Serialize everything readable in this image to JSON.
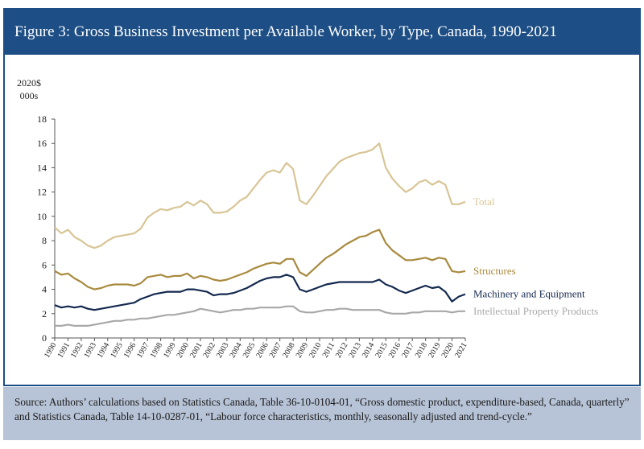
{
  "title": "Figure 3: Gross Business Investment per Available Worker, by Type, Canada, 1990-2021",
  "source": "Source: Authors’ calculations based on Statistics Canada, Table 36-10-0104-01, “Gross domestic product, expenditure-based, Canada, quarterly” and Statistics Canada, Table 14-10-0287-01, “Labour force characteristics, monthly, seasonally adjusted and trend-cycle.”",
  "chart_data": {
    "type": "line",
    "ylabel": [
      "2020$",
      "000s"
    ],
    "ylim": [
      0,
      18
    ],
    "yticks": [
      0,
      2,
      4,
      6,
      8,
      10,
      12,
      14,
      16,
      18
    ],
    "xlim": [
      1990,
      2021
    ],
    "xticks": [
      "1990",
      "1991",
      "1992",
      "1993",
      "1994",
      "1995",
      "1996",
      "1997",
      "1998",
      "1999",
      "2000",
      "2001",
      "2002",
      "2003",
      "2004",
      "2005",
      "2006",
      "2007",
      "2008",
      "2009",
      "2010",
      "2011",
      "2012",
      "2013",
      "2014",
      "2015",
      "2016",
      "2017",
      "2018",
      "2019",
      "2020",
      "2021"
    ],
    "grid": false,
    "legend": "inline-right",
    "series": [
      {
        "name": "Total",
        "color": "#d8c596",
        "points": [
          [
            1990.0,
            9.1
          ],
          [
            1990.5,
            8.6
          ],
          [
            1991.0,
            8.9
          ],
          [
            1991.5,
            8.3
          ],
          [
            1992.0,
            8.0
          ],
          [
            1992.5,
            7.6
          ],
          [
            1993.0,
            7.4
          ],
          [
            1993.5,
            7.6
          ],
          [
            1994.0,
            8.0
          ],
          [
            1994.5,
            8.3
          ],
          [
            1995.0,
            8.4
          ],
          [
            1995.5,
            8.5
          ],
          [
            1996.0,
            8.6
          ],
          [
            1996.5,
            9.0
          ],
          [
            1997.0,
            9.9
          ],
          [
            1997.5,
            10.3
          ],
          [
            1998.0,
            10.6
          ],
          [
            1998.5,
            10.5
          ],
          [
            1999.0,
            10.7
          ],
          [
            1999.5,
            10.8
          ],
          [
            2000.0,
            11.2
          ],
          [
            2000.5,
            10.9
          ],
          [
            2001.0,
            11.3
          ],
          [
            2001.5,
            11.0
          ],
          [
            2002.0,
            10.3
          ],
          [
            2002.5,
            10.3
          ],
          [
            2003.0,
            10.4
          ],
          [
            2003.5,
            10.8
          ],
          [
            2004.0,
            11.3
          ],
          [
            2004.5,
            11.6
          ],
          [
            2005.0,
            12.3
          ],
          [
            2005.5,
            13.0
          ],
          [
            2006.0,
            13.6
          ],
          [
            2006.5,
            13.8
          ],
          [
            2007.0,
            13.6
          ],
          [
            2007.5,
            14.4
          ],
          [
            2008.0,
            13.9
          ],
          [
            2008.5,
            11.3
          ],
          [
            2009.0,
            11.0
          ],
          [
            2009.5,
            11.7
          ],
          [
            2010.0,
            12.5
          ],
          [
            2010.5,
            13.3
          ],
          [
            2011.0,
            13.9
          ],
          [
            2011.5,
            14.5
          ],
          [
            2012.0,
            14.8
          ],
          [
            2012.5,
            15.0
          ],
          [
            2013.0,
            15.2
          ],
          [
            2013.5,
            15.3
          ],
          [
            2014.0,
            15.5
          ],
          [
            2014.5,
            16.0
          ],
          [
            2015.0,
            14.0
          ],
          [
            2015.5,
            13.1
          ],
          [
            2016.0,
            12.5
          ],
          [
            2016.5,
            12.0
          ],
          [
            2017.0,
            12.3
          ],
          [
            2017.5,
            12.8
          ],
          [
            2018.0,
            13.0
          ],
          [
            2018.5,
            12.6
          ],
          [
            2019.0,
            12.9
          ],
          [
            2019.5,
            12.6
          ],
          [
            2020.0,
            11.0
          ],
          [
            2020.5,
            11.0
          ],
          [
            2021.0,
            11.2
          ]
        ]
      },
      {
        "name": "Structures",
        "color": "#a88a3e",
        "points": [
          [
            1990.0,
            5.5
          ],
          [
            1990.5,
            5.2
          ],
          [
            1991.0,
            5.3
          ],
          [
            1991.5,
            4.9
          ],
          [
            1992.0,
            4.6
          ],
          [
            1992.5,
            4.2
          ],
          [
            1993.0,
            4.0
          ],
          [
            1993.5,
            4.1
          ],
          [
            1994.0,
            4.3
          ],
          [
            1994.5,
            4.4
          ],
          [
            1995.0,
            4.4
          ],
          [
            1995.5,
            4.4
          ],
          [
            1996.0,
            4.3
          ],
          [
            1996.5,
            4.5
          ],
          [
            1997.0,
            5.0
          ],
          [
            1997.5,
            5.1
          ],
          [
            1998.0,
            5.2
          ],
          [
            1998.5,
            5.0
          ],
          [
            1999.0,
            5.1
          ],
          [
            1999.5,
            5.1
          ],
          [
            2000.0,
            5.3
          ],
          [
            2000.5,
            4.9
          ],
          [
            2001.0,
            5.1
          ],
          [
            2001.5,
            5.0
          ],
          [
            2002.0,
            4.8
          ],
          [
            2002.5,
            4.7
          ],
          [
            2003.0,
            4.8
          ],
          [
            2003.5,
            5.0
          ],
          [
            2004.0,
            5.2
          ],
          [
            2004.5,
            5.4
          ],
          [
            2005.0,
            5.7
          ],
          [
            2005.5,
            5.9
          ],
          [
            2006.0,
            6.1
          ],
          [
            2006.5,
            6.2
          ],
          [
            2007.0,
            6.1
          ],
          [
            2007.5,
            6.5
          ],
          [
            2008.0,
            6.5
          ],
          [
            2008.5,
            5.4
          ],
          [
            2009.0,
            5.1
          ],
          [
            2009.5,
            5.6
          ],
          [
            2010.0,
            6.1
          ],
          [
            2010.5,
            6.6
          ],
          [
            2011.0,
            6.9
          ],
          [
            2011.5,
            7.3
          ],
          [
            2012.0,
            7.7
          ],
          [
            2012.5,
            8.0
          ],
          [
            2013.0,
            8.3
          ],
          [
            2013.5,
            8.4
          ],
          [
            2014.0,
            8.7
          ],
          [
            2014.5,
            8.9
          ],
          [
            2015.0,
            7.8
          ],
          [
            2015.5,
            7.2
          ],
          [
            2016.0,
            6.8
          ],
          [
            2016.5,
            6.4
          ],
          [
            2017.0,
            6.4
          ],
          [
            2017.5,
            6.5
          ],
          [
            2018.0,
            6.6
          ],
          [
            2018.5,
            6.4
          ],
          [
            2019.0,
            6.6
          ],
          [
            2019.5,
            6.5
          ],
          [
            2020.0,
            5.5
          ],
          [
            2020.5,
            5.4
          ],
          [
            2021.0,
            5.5
          ]
        ]
      },
      {
        "name": "Machinery and Equipment",
        "color": "#14294f",
        "points": [
          [
            1990.0,
            2.7
          ],
          [
            1990.5,
            2.5
          ],
          [
            1991.0,
            2.6
          ],
          [
            1991.5,
            2.5
          ],
          [
            1992.0,
            2.6
          ],
          [
            1992.5,
            2.4
          ],
          [
            1993.0,
            2.3
          ],
          [
            1993.5,
            2.4
          ],
          [
            1994.0,
            2.5
          ],
          [
            1994.5,
            2.6
          ],
          [
            1995.0,
            2.7
          ],
          [
            1995.5,
            2.8
          ],
          [
            1996.0,
            2.9
          ],
          [
            1996.5,
            3.2
          ],
          [
            1997.0,
            3.4
          ],
          [
            1997.5,
            3.6
          ],
          [
            1998.0,
            3.7
          ],
          [
            1998.5,
            3.8
          ],
          [
            1999.0,
            3.8
          ],
          [
            1999.5,
            3.8
          ],
          [
            2000.0,
            4.0
          ],
          [
            2000.5,
            4.0
          ],
          [
            2001.0,
            3.9
          ],
          [
            2001.5,
            3.8
          ],
          [
            2002.0,
            3.5
          ],
          [
            2002.5,
            3.6
          ],
          [
            2003.0,
            3.6
          ],
          [
            2003.5,
            3.7
          ],
          [
            2004.0,
            3.9
          ],
          [
            2004.5,
            4.1
          ],
          [
            2005.0,
            4.4
          ],
          [
            2005.5,
            4.7
          ],
          [
            2006.0,
            4.9
          ],
          [
            2006.5,
            5.0
          ],
          [
            2007.0,
            5.0
          ],
          [
            2007.5,
            5.2
          ],
          [
            2008.0,
            5.0
          ],
          [
            2008.5,
            4.0
          ],
          [
            2009.0,
            3.8
          ],
          [
            2009.5,
            4.0
          ],
          [
            2010.0,
            4.2
          ],
          [
            2010.5,
            4.4
          ],
          [
            2011.0,
            4.5
          ],
          [
            2011.5,
            4.6
          ],
          [
            2012.0,
            4.6
          ],
          [
            2012.5,
            4.6
          ],
          [
            2013.0,
            4.6
          ],
          [
            2013.5,
            4.6
          ],
          [
            2014.0,
            4.6
          ],
          [
            2014.5,
            4.8
          ],
          [
            2015.0,
            4.4
          ],
          [
            2015.5,
            4.2
          ],
          [
            2016.0,
            3.9
          ],
          [
            2016.5,
            3.7
          ],
          [
            2017.0,
            3.9
          ],
          [
            2017.5,
            4.1
          ],
          [
            2018.0,
            4.3
          ],
          [
            2018.5,
            4.1
          ],
          [
            2019.0,
            4.2
          ],
          [
            2019.5,
            3.8
          ],
          [
            2020.0,
            3.0
          ],
          [
            2020.5,
            3.4
          ],
          [
            2021.0,
            3.6
          ]
        ]
      },
      {
        "name": "Intellectual Property Products",
        "color": "#a8a8a8",
        "points": [
          [
            1990.0,
            1.0
          ],
          [
            1990.5,
            1.0
          ],
          [
            1991.0,
            1.1
          ],
          [
            1991.5,
            1.0
          ],
          [
            1992.0,
            1.0
          ],
          [
            1992.5,
            1.0
          ],
          [
            1993.0,
            1.1
          ],
          [
            1993.5,
            1.2
          ],
          [
            1994.0,
            1.3
          ],
          [
            1994.5,
            1.4
          ],
          [
            1995.0,
            1.4
          ],
          [
            1995.5,
            1.5
          ],
          [
            1996.0,
            1.5
          ],
          [
            1996.5,
            1.6
          ],
          [
            1997.0,
            1.6
          ],
          [
            1997.5,
            1.7
          ],
          [
            1998.0,
            1.8
          ],
          [
            1998.5,
            1.9
          ],
          [
            1999.0,
            1.9
          ],
          [
            1999.5,
            2.0
          ],
          [
            2000.0,
            2.1
          ],
          [
            2000.5,
            2.2
          ],
          [
            2001.0,
            2.4
          ],
          [
            2001.5,
            2.3
          ],
          [
            2002.0,
            2.2
          ],
          [
            2002.5,
            2.1
          ],
          [
            2003.0,
            2.2
          ],
          [
            2003.5,
            2.3
          ],
          [
            2004.0,
            2.3
          ],
          [
            2004.5,
            2.4
          ],
          [
            2005.0,
            2.4
          ],
          [
            2005.5,
            2.5
          ],
          [
            2006.0,
            2.5
          ],
          [
            2006.5,
            2.5
          ],
          [
            2007.0,
            2.5
          ],
          [
            2007.5,
            2.6
          ],
          [
            2008.0,
            2.6
          ],
          [
            2008.5,
            2.2
          ],
          [
            2009.0,
            2.1
          ],
          [
            2009.5,
            2.1
          ],
          [
            2010.0,
            2.2
          ],
          [
            2010.5,
            2.3
          ],
          [
            2011.0,
            2.3
          ],
          [
            2011.5,
            2.4
          ],
          [
            2012.0,
            2.4
          ],
          [
            2012.5,
            2.3
          ],
          [
            2013.0,
            2.3
          ],
          [
            2013.5,
            2.3
          ],
          [
            2014.0,
            2.3
          ],
          [
            2014.5,
            2.3
          ],
          [
            2015.0,
            2.1
          ],
          [
            2015.5,
            2.0
          ],
          [
            2016.0,
            2.0
          ],
          [
            2016.5,
            2.0
          ],
          [
            2017.0,
            2.1
          ],
          [
            2017.5,
            2.1
          ],
          [
            2018.0,
            2.2
          ],
          [
            2018.5,
            2.2
          ],
          [
            2019.0,
            2.2
          ],
          [
            2019.5,
            2.2
          ],
          [
            2020.0,
            2.1
          ],
          [
            2020.5,
            2.2
          ],
          [
            2021.0,
            2.2
          ]
        ]
      }
    ]
  }
}
